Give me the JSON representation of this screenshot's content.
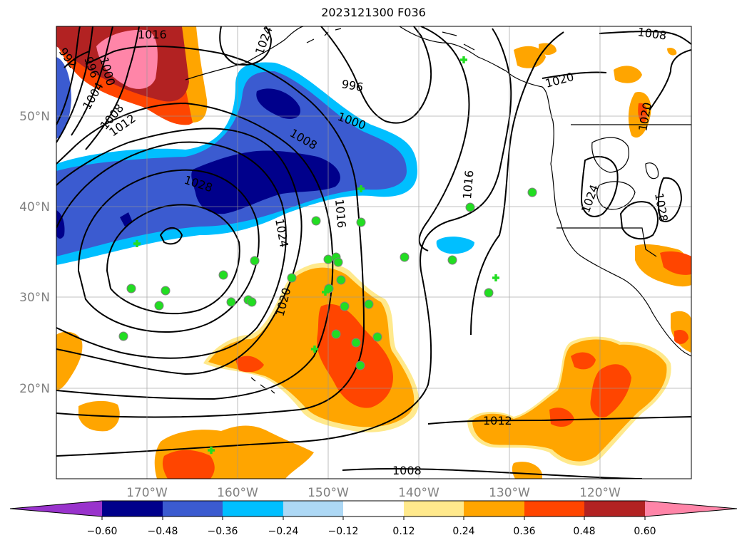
{
  "title": "2023121300 F036",
  "map": {
    "lat_labels": [
      "50°N",
      "40°N",
      "30°N",
      "20°N"
    ],
    "lon_labels": [
      "170°W",
      "160°W",
      "150°W",
      "140°W",
      "130°W",
      "120°W"
    ],
    "contour_labels": [
      "1016",
      "992",
      "996",
      "1000",
      "1004",
      "1008",
      "1012",
      "1028",
      "1024",
      "1016",
      "1020",
      "996",
      "1000",
      "1008",
      "1016",
      "1020",
      "1012",
      "1008",
      "1020",
      "1024",
      "1028",
      "1008",
      "1024"
    ],
    "colors": {
      "purple": "#9933cc",
      "navy": "#00008b",
      "royal": "#3b5bd0",
      "sky": "#00bfff",
      "light_sky": "#add8f5",
      "white": "#ffffff",
      "light_yellow": "#ffe98c",
      "orange": "#ffa500",
      "red_orange": "#ff4500",
      "firebrick": "#b22222",
      "pink": "#ff85a8",
      "station_green": "#22dd22"
    },
    "station_count": 36
  },
  "colorbar": {
    "tick_labels": [
      "−0.60",
      "−0.48",
      "−0.36",
      "−0.24",
      "−0.12",
      "0.12",
      "0.24",
      "0.36",
      "0.48",
      "0.60"
    ]
  }
}
